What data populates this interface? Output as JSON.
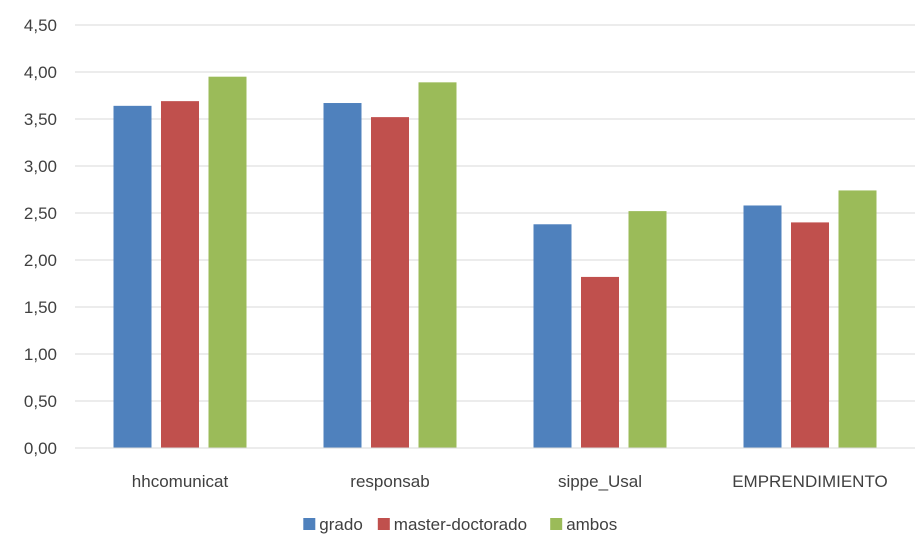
{
  "chart_data": {
    "type": "bar",
    "title": "",
    "xlabel": "",
    "ylabel": "",
    "categories": [
      "hhcomunicat",
      "responsab",
      "sippe_Usal",
      "EMPRENDIMIENTO"
    ],
    "series": [
      {
        "name": "grado",
        "color": "#4F81BD",
        "values": [
          3.64,
          3.67,
          2.38,
          2.58
        ]
      },
      {
        "name": "master-doctorado",
        "color": "#C0504D",
        "values": [
          3.69,
          3.52,
          1.82,
          2.4
        ]
      },
      {
        "name": "ambos",
        "color": "#9BBB59",
        "values": [
          3.95,
          3.89,
          2.52,
          2.74
        ]
      }
    ],
    "ylim": [
      0,
      4.5
    ],
    "yticks": [
      "0,00",
      "0,50",
      "1,00",
      "1,50",
      "2,00",
      "2,50",
      "3,00",
      "3,50",
      "4,00",
      "4,50"
    ],
    "grid": true,
    "legend_position": "bottom"
  }
}
